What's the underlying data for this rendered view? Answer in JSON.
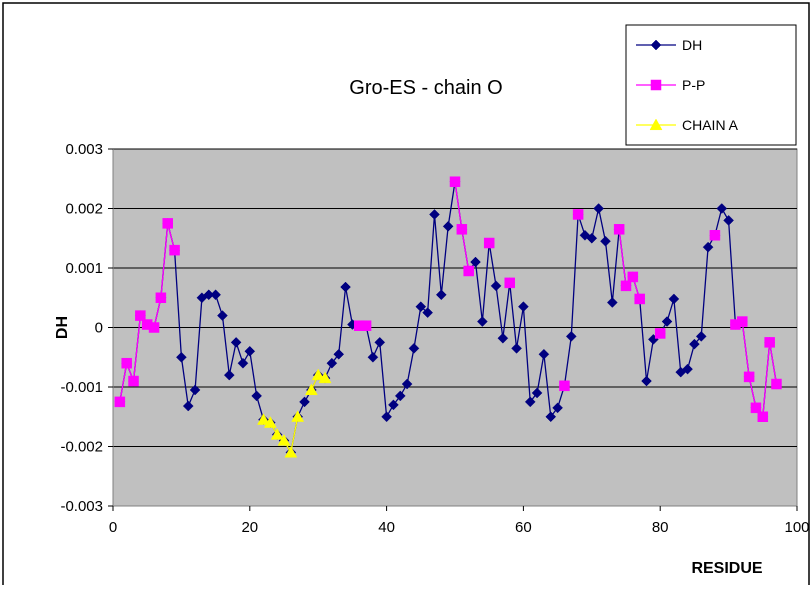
{
  "chart_data": {
    "type": "line",
    "title": "Gro-ES - chain O",
    "xlabel": "RESIDUE",
    "ylabel": "DH",
    "xlim": [
      0,
      100
    ],
    "ylim": [
      -0.003,
      0.003
    ],
    "x_ticks": [
      0,
      20,
      40,
      60,
      80,
      100
    ],
    "y_ticks": [
      -0.003,
      -0.002,
      -0.001,
      0,
      0.001,
      0.002,
      0.003
    ],
    "x_tick_labels": [
      "0",
      "20",
      "40",
      "60",
      "80",
      "100"
    ],
    "y_tick_labels": [
      "-0.003",
      "-0.002",
      "-0.001",
      "0",
      "0.001",
      "0.002",
      "0.003"
    ],
    "grid": "horizontal",
    "legend_position": "top-right",
    "plot_background": "#c0c0c0",
    "series": [
      {
        "name": "DH",
        "color": "#000080",
        "marker": "diamond",
        "x": [
          1,
          2,
          3,
          4,
          5,
          6,
          7,
          8,
          9,
          10,
          11,
          12,
          13,
          14,
          15,
          16,
          17,
          18,
          19,
          20,
          21,
          22,
          23,
          24,
          25,
          26,
          27,
          28,
          29,
          30,
          31,
          32,
          33,
          34,
          35,
          36,
          37,
          38,
          39,
          40,
          41,
          42,
          43,
          44,
          45,
          46,
          47,
          48,
          49,
          50,
          51,
          52,
          53,
          54,
          55,
          56,
          57,
          58,
          59,
          60,
          61,
          62,
          63,
          64,
          65,
          66,
          67,
          68,
          69,
          70,
          71,
          72,
          73,
          74,
          75,
          76,
          77,
          78,
          79,
          80,
          81,
          82,
          83,
          84,
          85,
          86,
          87,
          88,
          89,
          90,
          91,
          92,
          93,
          94,
          95,
          96,
          97
        ],
        "y": [
          -0.00125,
          -0.0006,
          -0.0009,
          0.0002,
          5e-05,
          0.0,
          0.0005,
          0.00175,
          0.0013,
          -0.0005,
          -0.00132,
          -0.00105,
          0.0005,
          0.00055,
          0.00055,
          0.0002,
          -0.0008,
          -0.00025,
          -0.0006,
          -0.0004,
          -0.00115,
          -0.00155,
          -0.0016,
          -0.0018,
          -0.0019,
          -0.0021,
          -0.0015,
          -0.00125,
          -0.00105,
          -0.0008,
          -0.00085,
          -0.0006,
          -0.00045,
          0.00068,
          5e-05,
          3e-05,
          3e-05,
          -0.0005,
          -0.00025,
          -0.0015,
          -0.0013,
          -0.00115,
          -0.00095,
          -0.00035,
          0.00035,
          0.00025,
          0.0019,
          0.00055,
          0.0017,
          0.00245,
          0.00165,
          0.00095,
          0.0011,
          0.0001,
          0.00142,
          0.0007,
          -0.00018,
          0.00075,
          -0.00035,
          0.00035,
          -0.00125,
          -0.0011,
          -0.00045,
          -0.0015,
          -0.00135,
          -0.00098,
          -0.00015,
          0.0019,
          0.00155,
          0.0015,
          0.002,
          0.00145,
          0.00042,
          0.00165,
          0.0007,
          0.00085,
          0.00048,
          -0.0009,
          -0.0002,
          -0.0001,
          0.0001,
          0.00048,
          -0.00075,
          -0.0007,
          -0.00028,
          -0.00015,
          0.00135,
          0.00155,
          0.002,
          0.0018,
          5e-05,
          0.0001,
          -0.00083,
          -0.00135,
          -0.0015,
          -0.00025,
          -0.00095
        ]
      },
      {
        "name": "P-P",
        "color": "#ff00ff",
        "marker": "square",
        "segments": [
          {
            "x": [
              1,
              2,
              3,
              4,
              5,
              6,
              7,
              8,
              9
            ],
            "y": [
              -0.00125,
              -0.0006,
              -0.0009,
              0.0002,
              5e-05,
              0.0,
              0.0005,
              0.00175,
              0.0013
            ]
          },
          {
            "x": [
              36,
              37
            ],
            "y": [
              3e-05,
              3e-05
            ]
          },
          {
            "x": [
              50,
              51,
              52
            ],
            "y": [
              0.00245,
              0.00165,
              0.00095
            ]
          },
          {
            "x": [
              55
            ],
            "y": [
              0.00142
            ]
          },
          {
            "x": [
              58
            ],
            "y": [
              0.00075
            ]
          },
          {
            "x": [
              66
            ],
            "y": [
              -0.00098
            ]
          },
          {
            "x": [
              68
            ],
            "y": [
              0.0019
            ]
          },
          {
            "x": [
              74,
              75,
              76,
              77
            ],
            "y": [
              0.00165,
              0.0007,
              0.00085,
              0.00048
            ]
          },
          {
            "x": [
              80
            ],
            "y": [
              -0.0001
            ]
          },
          {
            "x": [
              88
            ],
            "y": [
              0.00155
            ]
          },
          {
            "x": [
              91,
              92,
              93,
              94,
              95,
              96,
              97
            ],
            "y": [
              5e-05,
              0.0001,
              -0.00083,
              -0.00135,
              -0.0015,
              -0.00025,
              -0.00095
            ]
          }
        ]
      },
      {
        "name": "CHAIN A",
        "color": "#ffff00",
        "marker": "triangle",
        "segments": [
          {
            "x": [
              22,
              23,
              24,
              25,
              26,
              27
            ],
            "y": [
              -0.00155,
              -0.0016,
              -0.0018,
              -0.0019,
              -0.0021,
              -0.0015
            ]
          },
          {
            "x": [
              29,
              30,
              31
            ],
            "y": [
              -0.00105,
              -0.0008,
              -0.00085
            ]
          }
        ]
      }
    ]
  }
}
